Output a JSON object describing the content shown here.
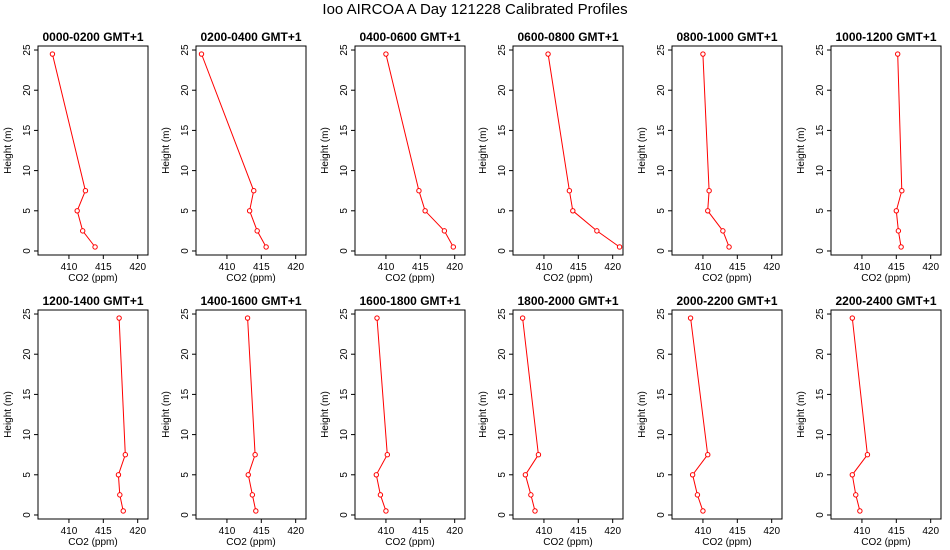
{
  "page": {
    "title": "Ioo AIRCOA A  Day 121228  Calibrated Profiles"
  },
  "styles": {
    "line_color": "#ff0000",
    "point_color": "#ff0000",
    "axis_color": "#000000",
    "background": "#ffffff"
  },
  "axes": {
    "xlabel": "CO2 (ppm)",
    "ylabel": "Height (m)",
    "xlim": [
      405.5,
      421.5
    ],
    "ylim": [
      -0.5,
      25.5
    ],
    "xticks": [
      410,
      415,
      420
    ],
    "yticks": [
      0,
      5,
      10,
      15,
      20,
      25
    ]
  },
  "chart_data": [
    {
      "type": "line",
      "title": "0000-0200 GMT+1",
      "x": [
        407.6,
        412.4,
        411.2,
        412.0,
        413.8
      ],
      "y": [
        24.5,
        7.5,
        5.0,
        2.5,
        0.5
      ]
    },
    {
      "type": "line",
      "title": "0200-0400 GMT+1",
      "x": [
        406.3,
        413.9,
        413.3,
        414.4,
        415.7
      ],
      "y": [
        24.5,
        7.5,
        5.0,
        2.5,
        0.5
      ]
    },
    {
      "type": "line",
      "title": "0400-0600 GMT+1",
      "x": [
        410.0,
        414.8,
        415.7,
        418.5,
        419.8
      ],
      "y": [
        24.5,
        7.5,
        5.0,
        2.5,
        0.5
      ]
    },
    {
      "type": "line",
      "title": "0600-0800 GMT+1",
      "x": [
        410.6,
        413.7,
        414.2,
        417.7,
        421.0
      ],
      "y": [
        24.5,
        7.5,
        5.0,
        2.5,
        0.5
      ]
    },
    {
      "type": "line",
      "title": "0800-1000 GMT+1",
      "x": [
        410.0,
        410.9,
        410.7,
        412.9,
        413.8
      ],
      "y": [
        24.5,
        7.5,
        5.0,
        2.5,
        0.5
      ]
    },
    {
      "type": "line",
      "title": "1000-1200 GMT+1",
      "x": [
        415.2,
        415.8,
        415.0,
        415.3,
        415.7
      ],
      "y": [
        24.5,
        7.5,
        5.0,
        2.5,
        0.5
      ]
    },
    {
      "type": "line",
      "title": "1200-1400 GMT+1",
      "x": [
        417.3,
        418.2,
        417.2,
        417.4,
        417.9
      ],
      "y": [
        24.5,
        7.5,
        5.0,
        2.5,
        0.5
      ]
    },
    {
      "type": "line",
      "title": "1400-1600 GMT+1",
      "x": [
        413.0,
        414.1,
        413.1,
        413.7,
        414.2
      ],
      "y": [
        24.5,
        7.5,
        5.0,
        2.5,
        0.5
      ]
    },
    {
      "type": "line",
      "title": "1600-1800 GMT+1",
      "x": [
        408.7,
        410.2,
        408.6,
        409.2,
        410.0
      ],
      "y": [
        24.5,
        7.5,
        5.0,
        2.5,
        0.5
      ]
    },
    {
      "type": "line",
      "title": "1800-2000 GMT+1",
      "x": [
        406.9,
        409.2,
        407.3,
        408.1,
        408.7
      ],
      "y": [
        24.5,
        7.5,
        5.0,
        2.5,
        0.5
      ]
    },
    {
      "type": "line",
      "title": "2000-2200 GMT+1",
      "x": [
        408.2,
        410.7,
        408.5,
        409.2,
        410.0
      ],
      "y": [
        24.5,
        7.5,
        5.0,
        2.5,
        0.5
      ]
    },
    {
      "type": "line",
      "title": "2200-2400 GMT+1",
      "x": [
        408.6,
        410.8,
        408.6,
        409.1,
        409.7
      ],
      "y": [
        24.5,
        7.5,
        5.0,
        2.5,
        0.5
      ]
    }
  ]
}
